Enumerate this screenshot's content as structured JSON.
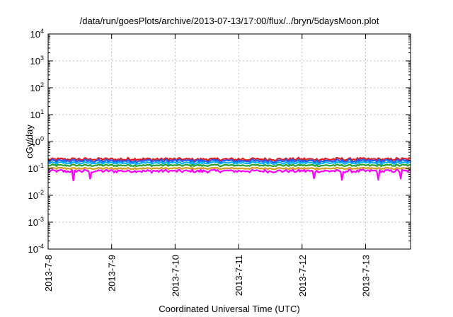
{
  "chart_data": {
    "type": "line",
    "title": "/data/run/goesPlots/archive/2013-07-13/17:00/flux/../bryn/5daysMoon.plot",
    "xlabel": "Coordinated Universal Time (UTC)",
    "ylabel": "cGy/day",
    "y_scale": "log",
    "ylim": [
      0.0001,
      10000
    ],
    "xlim": [
      "2013-07-08",
      "2013-07-13 17:00"
    ],
    "grid": true,
    "x_tick_labels": [
      "2013-7-8",
      "2013-7-9",
      "2013-7-10",
      "2013-7-11",
      "2013-7-12",
      "2013-7-13"
    ],
    "y_ticks": [
      {
        "value": 0.0001,
        "base": "10",
        "exp": "-4"
      },
      {
        "value": 0.001,
        "base": "10",
        "exp": "-3"
      },
      {
        "value": 0.01,
        "base": "10",
        "exp": "-2"
      },
      {
        "value": 0.1,
        "base": "10",
        "exp": "-1"
      },
      {
        "value": 1,
        "base": "10",
        "exp": "0"
      },
      {
        "value": 10,
        "base": "10",
        "exp": "1"
      },
      {
        "value": 100,
        "base": "10",
        "exp": "2"
      },
      {
        "value": 1000,
        "base": "10",
        "exp": "3"
      },
      {
        "value": 10000,
        "base": "10",
        "exp": "4"
      }
    ],
    "series": [
      {
        "color": "#e31a1c",
        "level": 0.22,
        "amp": 0.12,
        "spike_dn": 0
      },
      {
        "color": "#1f5bff",
        "level": 0.19,
        "amp": 0.13,
        "spike_dn": 0
      },
      {
        "color": "#00b0ff",
        "level": 0.16,
        "amp": 0.1,
        "spike_dn": 0
      },
      {
        "color": "#2ca02c",
        "level": 0.13,
        "amp": 0.08,
        "spike_dn": 0
      },
      {
        "color": "#d4a017",
        "level": 0.1,
        "amp": 0.07,
        "spike_dn": 0
      },
      {
        "color": "#ff00ff",
        "level": 0.08,
        "amp": 0.12,
        "spike_dn": 0.035
      }
    ]
  }
}
